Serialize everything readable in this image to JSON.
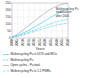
{
  "chart_data": {
    "type": "line",
    "xlabel": "Years",
    "x": [
      2000,
      2005,
      2010,
      2015,
      2020,
      2025,
      2030,
      2035,
      2040,
      2045,
      2050
    ],
    "xlim": [
      2000,
      2050
    ],
    "ylim": [
      0,
      250
    ],
    "xticks": [
      2000,
      2005,
      2010,
      2015,
      2020,
      2025,
      2030,
      2035,
      2040,
      2045,
      2050
    ],
    "yticks": [
      0,
      50,
      100,
      150,
      200,
      250
    ],
    "grid": true,
    "legend": "bottom",
    "series": [
      {
        "name": "Multirecycling Pu in UOX and MOx",
        "color": "#55ccee",
        "line_style": "solid",
        "values": [
          5,
          18,
          35,
          55,
          78,
          102,
          125,
          150,
          172,
          192,
          210
        ]
      },
      {
        "name": "Multirecycling Pu",
        "color": "#55ccee",
        "line_style": "dashed",
        "values": [
          5,
          14,
          26,
          40,
          56,
          72,
          88,
          103,
          116,
          126,
          132
        ]
      },
      {
        "name": "Open cycles - Pu total",
        "color": "#aaaaaa",
        "line_style": "solid",
        "values": [
          5,
          28,
          58,
          90,
          122,
          153,
          182,
          208,
          228,
          242,
          248
        ]
      },
      {
        "name": "Multirecycling Pu in 1.2 PWRs",
        "color": "#55ccee",
        "line_style": "dashdot",
        "values": [
          5,
          12,
          22,
          34,
          46,
          59,
          71,
          83,
          93,
          100,
          104
        ]
      }
    ],
    "annotations": [
      {
        "text": "Multirecycling Pu\nstabilisation\nafter 2040",
        "x": 2039,
        "y": 152
      }
    ]
  }
}
